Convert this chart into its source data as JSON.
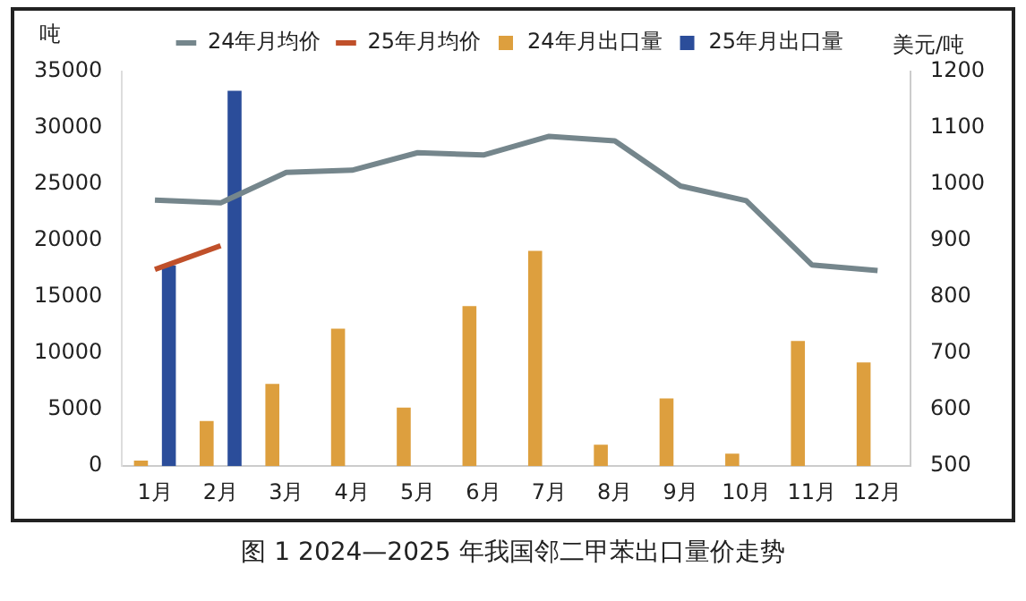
{
  "chart_data": {
    "type": "bar",
    "title": "图 1  2024—2025 年我国邻二甲苯出口量价走势",
    "ylabel": "吨",
    "y2label": "美元/吨",
    "categories": [
      "1月",
      "2月",
      "3月",
      "4月",
      "5月",
      "6月",
      "7月",
      "8月",
      "9月",
      "10月",
      "11月",
      "12月"
    ],
    "series": [
      {
        "name": "24年月出口量",
        "color": "#dd9f3e",
        "values": [
          500,
          4000,
          7300,
          12200,
          5200,
          14200,
          19100,
          1900,
          6000,
          1100,
          11100,
          9200
        ]
      },
      {
        "name": "25年月出口量",
        "color": "#2b4d9a",
        "values": [
          17800,
          33300,
          null,
          null,
          null,
          null,
          null,
          null,
          null,
          null,
          null,
          null
        ]
      },
      {
        "name": "24年月均价",
        "type": "line",
        "axis": "y2",
        "color": "#75868c",
        "values": [
          972,
          967,
          1021,
          1025,
          1056,
          1052,
          1085,
          1077,
          997,
          971,
          857,
          847
        ]
      },
      {
        "name": "25年月均价",
        "type": "line",
        "axis": "y2",
        "color": "#c0502a",
        "values": [
          849,
          891,
          null,
          null,
          null,
          null,
          null,
          null,
          null,
          null,
          null,
          null
        ]
      }
    ],
    "ylim": [
      0,
      35000
    ],
    "yticks": [
      0,
      5000,
      10000,
      15000,
      20000,
      25000,
      30000,
      35000
    ],
    "y2lim": [
      500,
      1200
    ],
    "y2ticks": [
      500,
      600,
      700,
      800,
      900,
      1000,
      1100,
      1200
    ],
    "grid": false,
    "legend": "top",
    "marker": "none"
  }
}
